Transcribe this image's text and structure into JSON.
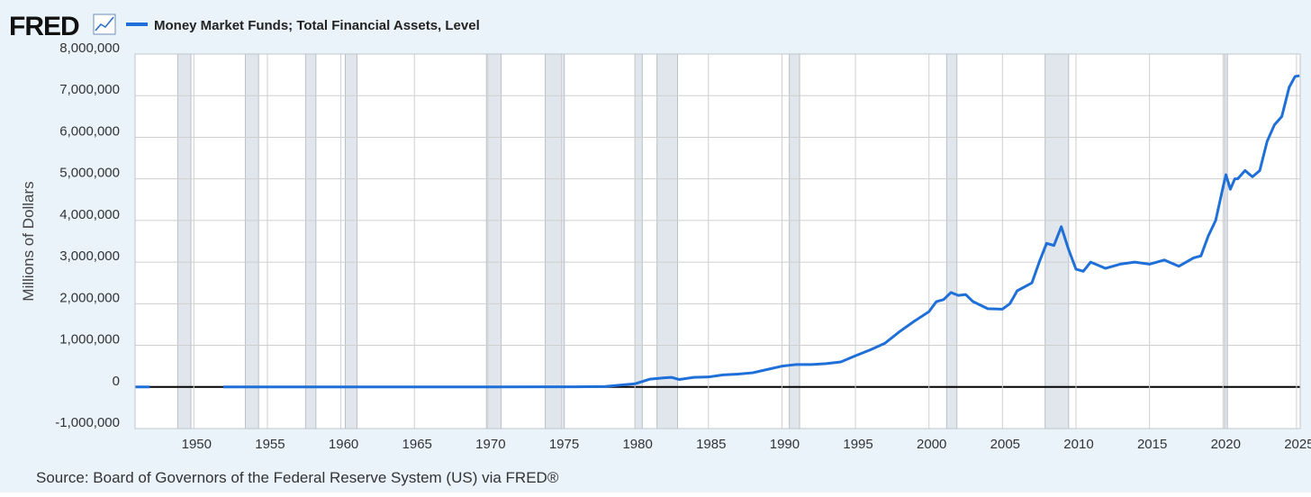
{
  "chart_data": {
    "type": "line",
    "logo": "FRED",
    "title": "Money Market Funds; Total Financial Assets, Level",
    "y_label": "Millions of Dollars",
    "source": "Source: Board of Governors of the Federal Reserve System (US) via FRED®",
    "xlim": [
      1946,
      2025.25
    ],
    "xticks": [
      1950,
      1955,
      1960,
      1965,
      1970,
      1975,
      1980,
      1985,
      1990,
      1995,
      2000,
      2005,
      2010,
      2015,
      2020,
      2025
    ],
    "ylim": [
      -1000000,
      8000000
    ],
    "yticks": [
      {
        "value": -1000000,
        "label": "-1,000,000"
      },
      0,
      {
        "value": 1000000,
        "label": "1,000,000"
      },
      {
        "value": 2000000,
        "label": "2,000,000"
      },
      {
        "value": 3000000,
        "label": "3,000,000"
      },
      {
        "value": 4000000,
        "label": "4,000,000"
      },
      {
        "value": 5000000,
        "label": "5,000,000"
      },
      {
        "value": 6000000,
        "label": "6,000,000"
      },
      {
        "value": 7000000,
        "label": "7,000,000"
      },
      {
        "value": 8000000,
        "label": "8,000,000"
      }
    ],
    "grid": true,
    "recessions": [
      [
        1948.9,
        1949.8
      ],
      [
        1953.5,
        1954.4
      ],
      [
        1957.6,
        1958.3
      ],
      [
        1960.3,
        1961.1
      ],
      [
        1969.9,
        1970.9
      ],
      [
        1973.9,
        1975.2
      ],
      [
        1980.0,
        1980.5
      ],
      [
        1981.5,
        1982.9
      ],
      [
        1990.5,
        1991.2
      ],
      [
        2001.2,
        2001.9
      ],
      [
        2007.9,
        2009.5
      ],
      [
        2020.1,
        2020.3
      ]
    ],
    "recession_color": "#e1e6ec",
    "series": [
      {
        "name": "Money Market Funds; Total Financial Assets, Level",
        "color": "#1f6fd8",
        "x": [
          1946,
          1947,
          1948,
          1951,
          1952,
          1960,
          1970,
          1974,
          1976,
          1978,
          1979,
          1980,
          1981,
          1982,
          1982.5,
          1983,
          1984,
          1985,
          1986,
          1987,
          1988,
          1989,
          1990,
          1991,
          1992,
          1993,
          1994,
          1995,
          1996,
          1997,
          1998,
          1999,
          2000,
          2000.5,
          2001,
          2001.5,
          2002,
          2002.5,
          2003,
          2004,
          2005,
          2005.5,
          2006,
          2007,
          2007.5,
          2008,
          2008.5,
          2009,
          2009.5,
          2010,
          2010.5,
          2011,
          2012,
          2013,
          2014,
          2015,
          2016,
          2017,
          2018,
          2018.5,
          2019,
          2019.5,
          2020,
          2020.2,
          2020.5,
          2020.8,
          2021,
          2021.5,
          2022,
          2022.5,
          2023,
          2023.5,
          2024,
          2024.5,
          2024.9,
          2025.2
        ],
        "values": [
          0,
          0,
          null,
          null,
          0,
          0,
          0,
          2400,
          3700,
          11000,
          45000,
          76000,
          186000,
          220000,
          230000,
          180000,
          230000,
          240000,
          290000,
          310000,
          340000,
          420000,
          500000,
          540000,
          540000,
          560000,
          600000,
          750000,
          890000,
          1050000,
          1330000,
          1580000,
          1810000,
          2050000,
          2100000,
          2270000,
          2200000,
          2220000,
          2050000,
          1880000,
          1870000,
          2000000,
          2310000,
          2500000,
          3000000,
          3450000,
          3400000,
          3850000,
          3300000,
          2830000,
          2780000,
          3000000,
          2850000,
          2950000,
          3000000,
          2950000,
          3050000,
          2900000,
          3100000,
          3150000,
          3630000,
          4000000,
          4800000,
          5100000,
          4750000,
          5000000,
          5000000,
          5200000,
          5050000,
          5200000,
          5900000,
          6300000,
          6500000,
          7200000,
          7460000,
          7480000
        ]
      }
    ]
  }
}
